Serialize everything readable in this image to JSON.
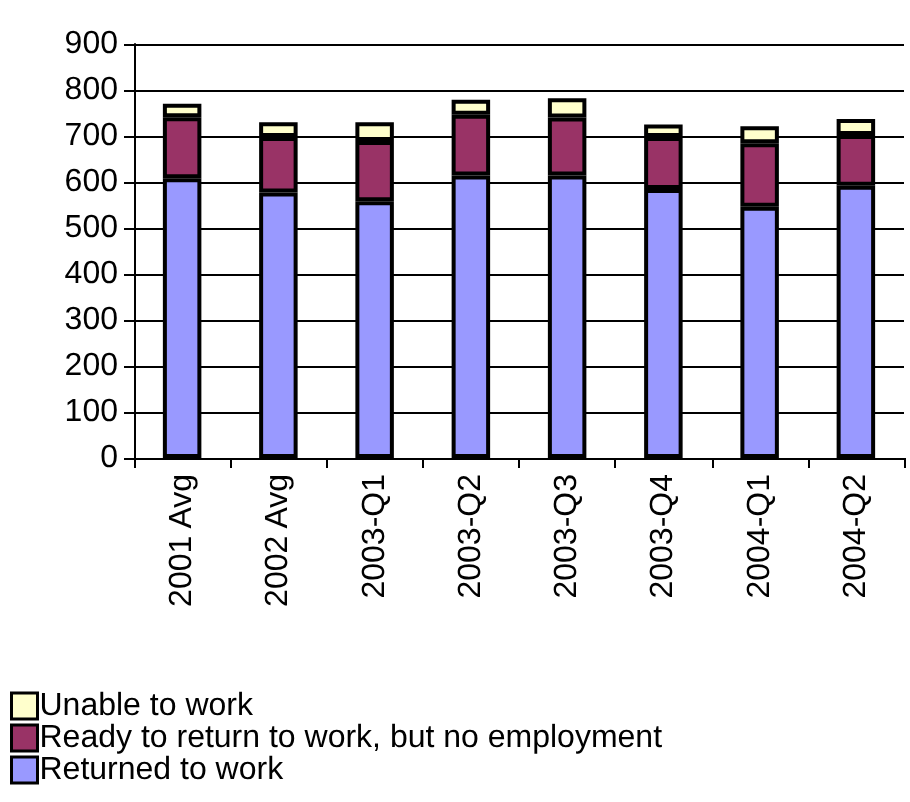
{
  "chart_data": {
    "type": "bar",
    "stacked": true,
    "categories": [
      "2001 Avg",
      "2002 Avg",
      "2003-Q1",
      "2003-Q2",
      "2003-Q3",
      "2003-Q4",
      "2004-Q1",
      "2004-Q2"
    ],
    "series": [
      {
        "name": "Returned to work",
        "color": "#9999ff",
        "values": [
          608,
          577,
          558,
          614,
          614,
          585,
          546,
          592
        ]
      },
      {
        "name": "Ready to return to work, but no employment",
        "color": "#993366",
        "values": [
          133,
          121,
          131,
          132,
          126,
          113,
          138,
          110
        ]
      },
      {
        "name": "Unable to work",
        "color": "#ffffcc",
        "values": [
          29,
          32,
          41,
          33,
          42,
          27,
          37,
          35
        ]
      }
    ],
    "ylim": [
      0,
      900
    ],
    "yticks": [
      0,
      100,
      200,
      300,
      400,
      500,
      600,
      700,
      800,
      900
    ],
    "grid": "y",
    "legend": "bottom left"
  }
}
